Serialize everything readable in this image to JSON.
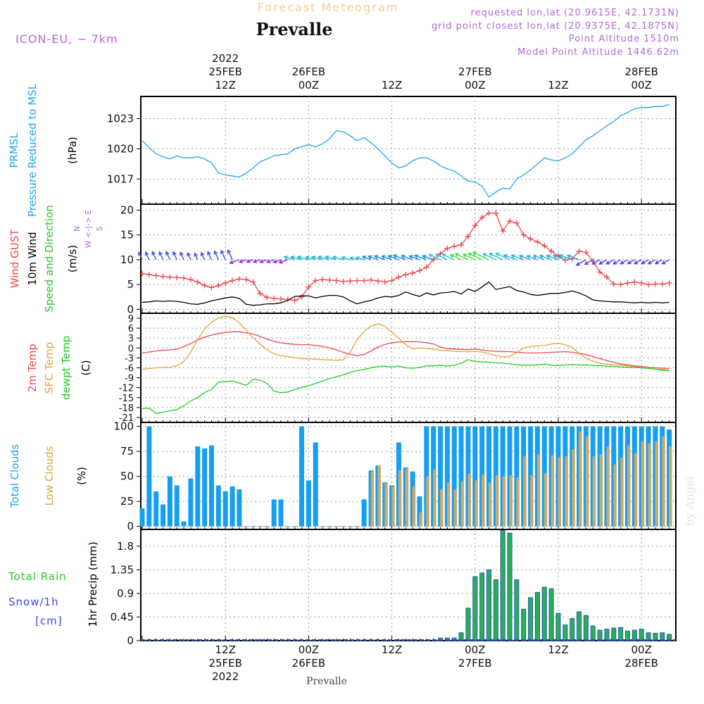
{
  "header": {
    "top_title": "Forecast Meteogram",
    "station": "Prevalle",
    "model": "ICON-EU, ~ 7km",
    "info_lines": [
      "requested lon,lat (20.9615E, 42.1731N)",
      "grid point closest lon,lat (20.9375E, 42.1875N)",
      "Point Altitude 1510m",
      "Model Point Altitude 1446.62m"
    ],
    "bottom_station": "Prevalle",
    "watermark": "by Angel"
  },
  "time_axis": {
    "top_labels": [
      {
        "h": 12,
        "lines": [
          "2022",
          "25FEB",
          "12Z"
        ]
      },
      {
        "h": 24,
        "lines": [
          "26FEB",
          "00Z"
        ]
      },
      {
        "h": 36,
        "lines": [
          "12Z"
        ]
      },
      {
        "h": 48,
        "lines": [
          "27FEB",
          "00Z"
        ]
      },
      {
        "h": 60,
        "lines": [
          "12Z"
        ]
      },
      {
        "h": 72,
        "lines": [
          "28FEB",
          "00Z"
        ]
      }
    ],
    "bottom_labels": [
      {
        "h": 12,
        "lines": [
          "12Z",
          "25FEB",
          "2022"
        ]
      },
      {
        "h": 24,
        "lines": [
          "00Z",
          "26FEB"
        ]
      },
      {
        "h": 36,
        "lines": [
          "12Z"
        ]
      },
      {
        "h": 48,
        "lines": [
          "00Z",
          "27FEB"
        ]
      },
      {
        "h": 60,
        "lines": [
          "12Z"
        ]
      },
      {
        "h": 72,
        "lines": [
          "00Z",
          "28FEB"
        ]
      }
    ]
  },
  "chart_data": [
    {
      "type": "line",
      "panel": "pressure",
      "side_labels": [
        "PRMSL",
        "Pressure Reduced to MSL",
        "(hPa)"
      ],
      "ylim": [
        1014.5,
        1025.2
      ],
      "yticks": [
        "1017",
        "1020",
        "1023"
      ],
      "ytick_values": [
        1017,
        1020,
        1023
      ],
      "series": [
        {
          "values": [
            1020.8,
            1020.1,
            1019.5,
            1019.2,
            1019.0,
            1019.3,
            1019.1,
            1019.1,
            1019.2,
            1019.0,
            1018.6,
            1017.6,
            1017.4,
            1017.3,
            1017.2,
            1017.6,
            1018.1,
            1018.7,
            1019.0,
            1019.3,
            1019.4,
            1019.5,
            1020.0,
            1020.2,
            1020.4,
            1020.2,
            1020.5,
            1021.0,
            1021.8,
            1021.7,
            1021.3,
            1020.8,
            1021.1,
            1020.6,
            1020.0,
            1019.3,
            1018.6,
            1018.1,
            1018.3,
            1018.8,
            1019.1,
            1019.1,
            1018.8,
            1018.3,
            1018.0,
            1017.8,
            1017.3,
            1016.8,
            1016.7,
            1016.3,
            1015.2,
            1015.7,
            1016.1,
            1016.0,
            1017.0,
            1017.4,
            1017.9,
            1018.5,
            1019.1,
            1018.9,
            1018.8,
            1019.1,
            1019.5,
            1020.2,
            1020.9,
            1021.3,
            1021.8,
            1022.3,
            1022.7,
            1023.3,
            1023.6,
            1024.0,
            1024.1,
            1024.1,
            1024.2,
            1024.2,
            1024.4
          ]
        }
      ]
    },
    {
      "type": "line",
      "panel": "wind",
      "side_labels": [
        "Wind GUST",
        "10m Wind",
        "Speed and Direction",
        "(m/s)"
      ],
      "compass": [
        "N",
        "W <-|-> E",
        "S"
      ],
      "ylim": [
        -0.8,
        21.2
      ],
      "yticks": [
        "0",
        "5",
        "10",
        "15",
        "20"
      ],
      "ytick_values": [
        0,
        5,
        10,
        15,
        20
      ],
      "series": [
        {
          "name": "Wind GUST",
          "values": [
            7.2,
            7.0,
            6.8,
            6.6,
            6.5,
            6.4,
            6.3,
            6.0,
            5.5,
            4.8,
            4.4,
            4.8,
            5.3,
            5.8,
            6.1,
            6.0,
            5.5,
            3.2,
            2.4,
            2.2,
            2.1,
            2.0,
            1.8,
            2.5,
            4.5,
            5.8,
            6.0,
            5.9,
            5.8,
            5.6,
            5.7,
            5.8,
            5.8,
            5.9,
            5.7,
            5.5,
            5.8,
            6.5,
            7.0,
            7.3,
            7.8,
            8.5,
            10.0,
            11.2,
            12.3,
            12.7,
            13.0,
            14.7,
            16.9,
            18.5,
            19.4,
            19.4,
            15.8,
            17.8,
            17.4,
            15.0,
            14.2,
            13.6,
            12.8,
            11.7,
            10.8,
            9.9,
            10.2,
            11.7,
            11.5,
            9.7,
            7.5,
            6.5,
            5.1,
            5.0,
            5.3,
            5.5,
            5.3,
            5.0,
            5.1,
            5.1,
            5.3
          ]
        },
        {
          "name": "10m Wind",
          "values": [
            1.4,
            1.5,
            1.7,
            1.6,
            1.7,
            1.6,
            1.4,
            1.1,
            1.0,
            1.3,
            1.7,
            2.0,
            2.3,
            2.5,
            2.2,
            1.0,
            0.8,
            0.9,
            1.1,
            1.1,
            1.3,
            1.8,
            2.6,
            2.7,
            2.7,
            2.3,
            2.6,
            2.8,
            2.8,
            2.5,
            1.7,
            1.1,
            1.5,
            1.8,
            2.3,
            2.6,
            2.5,
            2.8,
            3.5,
            3.0,
            2.6,
            3.3,
            2.9,
            3.3,
            3.4,
            3.6,
            3.1,
            4.1,
            3.6,
            4.5,
            5.5,
            4.0,
            4.3,
            4.6,
            3.8,
            3.5,
            3.0,
            2.8,
            3.0,
            3.2,
            3.2,
            3.4,
            3.7,
            3.3,
            2.7,
            1.9,
            1.7,
            1.6,
            1.5,
            1.5,
            1.4,
            1.3,
            1.4,
            1.3,
            1.4,
            1.3,
            1.4
          ]
        }
      ]
    },
    {
      "type": "line",
      "panel": "temperature",
      "side_labels": [
        "2m Temp",
        "SFC Temp",
        "dewpt Temp",
        "(C)"
      ],
      "ylim": [
        -22.5,
        10.5
      ],
      "yticks": [
        "9",
        "6",
        "3",
        "0",
        "-3",
        "-6",
        "-9",
        "-12",
        "-15",
        "-18",
        "-21"
      ],
      "ytick_values": [
        9,
        6,
        3,
        0,
        -3,
        -6,
        -9,
        -12,
        -15,
        -18,
        -21
      ],
      "series": [
        {
          "name": "2m Temp",
          "values": [
            -1.5,
            -1.2,
            -0.9,
            -0.7,
            -0.6,
            -0.3,
            0.4,
            1.3,
            2.4,
            3.3,
            3.9,
            4.4,
            4.7,
            4.9,
            4.9,
            4.6,
            4.2,
            3.5,
            2.7,
            2.0,
            1.6,
            1.3,
            1.1,
            1.0,
            1.0,
            0.8,
            0.5,
            0.0,
            -0.5,
            -1.3,
            -1.9,
            -2.3,
            -2.0,
            -0.9,
            0.3,
            1.1,
            1.6,
            1.8,
            1.9,
            1.9,
            1.8,
            1.6,
            1.2,
            0.3,
            -0.2,
            -0.3,
            -0.4,
            -0.5,
            -0.3,
            -0.6,
            -0.9,
            -1.0,
            -1.1,
            -1.1,
            -1.3,
            -1.4,
            -1.5,
            -1.5,
            -1.4,
            -1.3,
            -1.2,
            -1.1,
            -1.3,
            -1.6,
            -2.0,
            -2.6,
            -3.2,
            -3.8,
            -4.3,
            -4.8,
            -5.1,
            -5.4,
            -5.6,
            -5.8,
            -6.0,
            -6.1,
            -6.2
          ]
        },
        {
          "name": "SFC Temp",
          "values": [
            -6.5,
            -6.2,
            -6.0,
            -5.9,
            -5.8,
            -5.4,
            -4.1,
            -1.3,
            2.5,
            5.8,
            7.8,
            9.1,
            9.6,
            9.2,
            7.6,
            5.4,
            3.1,
            1.2,
            -0.6,
            -1.7,
            -2.3,
            -2.6,
            -2.9,
            -3.2,
            -3.3,
            -3.4,
            -3.5,
            -3.6,
            -3.7,
            -3.6,
            -1.2,
            2.5,
            5.0,
            6.6,
            7.3,
            6.5,
            4.8,
            2.9,
            1.0,
            -0.2,
            0.0,
            -0.1,
            -0.4,
            -0.7,
            -0.8,
            -1.0,
            -1.1,
            -1.1,
            -1.0,
            -1.2,
            -1.7,
            -2.3,
            -2.7,
            -2.5,
            -1.4,
            0.0,
            0.5,
            0.6,
            0.8,
            1.2,
            1.4,
            1.0,
            0.2,
            -1.6,
            -3.1,
            -4.0,
            -4.6,
            -4.9,
            -5.1,
            -5.2,
            -5.4,
            -5.6,
            -5.9,
            -6.2,
            -6.4,
            -6.5,
            -6.7
          ]
        },
        {
          "name": "dewpt Temp",
          "values": [
            -18.3,
            -18.2,
            -19.8,
            -19.4,
            -19.0,
            -18.6,
            -17.5,
            -16.0,
            -15.0,
            -13.5,
            -12.5,
            -10.3,
            -10.2,
            -10.0,
            -10.6,
            -11.3,
            -9.4,
            -9.7,
            -10.7,
            -13.0,
            -13.5,
            -13.3,
            -12.6,
            -11.9,
            -11.4,
            -10.7,
            -10.0,
            -9.2,
            -8.7,
            -8.1,
            -7.4,
            -6.8,
            -6.5,
            -6.0,
            -5.6,
            -5.5,
            -5.7,
            -5.5,
            -6.0,
            -6.1,
            -5.9,
            -5.4,
            -5.4,
            -5.2,
            -5.5,
            -5.2,
            -4.6,
            -3.5,
            -4.1,
            -4.2,
            -4.3,
            -4.5,
            -4.6,
            -4.8,
            -5.1,
            -5.2,
            -5.2,
            -5.1,
            -4.9,
            -5.2,
            -5.3,
            -5.1,
            -5.0,
            -5.1,
            -5.1,
            -5.3,
            -5.3,
            -5.5,
            -5.6,
            -5.7,
            -5.8,
            -5.9,
            -6.0,
            -6.2,
            -6.4,
            -6.7,
            -6.9
          ]
        }
      ]
    },
    {
      "type": "bar",
      "panel": "clouds",
      "side_labels": [
        "Total Clouds",
        "Low Clouds",
        "(%)"
      ],
      "ylim": [
        -3,
        104
      ],
      "yticks": [
        "0",
        "25",
        "50",
        "75",
        "100"
      ],
      "ytick_values": [
        0,
        25,
        50,
        75,
        100
      ],
      "series": [
        {
          "name": "Total Clouds",
          "values": [
            18,
            100,
            35,
            22,
            50,
            41,
            5,
            48,
            80,
            78,
            81,
            41,
            35,
            40,
            37,
            0,
            0,
            0,
            0,
            27,
            27,
            0,
            0,
            100,
            46,
            84,
            0,
            0,
            0,
            0,
            0,
            0,
            27,
            56,
            61,
            44,
            41,
            84,
            59,
            55,
            30,
            100,
            100,
            100,
            100,
            100,
            100,
            100,
            100,
            100,
            100,
            100,
            100,
            100,
            100,
            100,
            100,
            100,
            100,
            100,
            100,
            100,
            100,
            100,
            100,
            100,
            100,
            100,
            100,
            100,
            100,
            100,
            100,
            100,
            100,
            100,
            97
          ]
        },
        {
          "name": "Low Clouds",
          "values": [
            0,
            0,
            0,
            0,
            0,
            0,
            0,
            0,
            0,
            0,
            0,
            0,
            0,
            0,
            0,
            0,
            0,
            0,
            0,
            0,
            0,
            0,
            0,
            0,
            0,
            0,
            0,
            0,
            0,
            0,
            0,
            0,
            0,
            55,
            61,
            43,
            40,
            56,
            58,
            40,
            14,
            50,
            57,
            37,
            44,
            37,
            45,
            53,
            46,
            52,
            44,
            51,
            50,
            51,
            49,
            70,
            51,
            72,
            53,
            71,
            69,
            70,
            77,
            95,
            90,
            70,
            72,
            80,
            62,
            69,
            81,
            73,
            85,
            83,
            85,
            90,
            80
          ]
        }
      ]
    },
    {
      "type": "bar",
      "panel": "precipitation",
      "side_labels": [
        "Total Rain",
        "Snow/1h",
        "[cm]",
        "1hr Precip (mm)"
      ],
      "ylim": [
        0,
        2.12
      ],
      "yticks": [
        "0",
        "0.45",
        "0.9",
        "1.35",
        "1.8"
      ],
      "ytick_values": [
        0,
        0.45,
        0.9,
        1.35,
        1.8
      ],
      "series": [
        {
          "name": "Total Rain",
          "values": [
            0,
            0,
            0,
            0,
            0,
            0,
            0,
            0,
            0,
            0,
            0,
            0,
            0,
            0,
            0,
            0,
            0,
            0,
            0,
            0,
            0,
            0,
            0,
            0,
            0,
            0,
            0,
            0,
            0,
            0,
            0,
            0,
            0,
            0,
            0,
            0,
            0,
            0,
            0,
            0,
            0,
            0,
            0,
            0.05,
            0.05,
            0.05,
            0.15,
            0.62,
            1.22,
            1.29,
            1.35,
            1.16,
            2.1,
            2.05,
            1.16,
            0.6,
            0.82,
            0.92,
            1.02,
            0.99,
            0.52,
            0.3,
            0.42,
            0.55,
            0.48,
            0.28,
            0.2,
            0.22,
            0.24,
            0.25,
            0.18,
            0.2,
            0.22,
            0.15,
            0.14,
            0.15,
            0.12
          ]
        }
      ]
    }
  ]
}
